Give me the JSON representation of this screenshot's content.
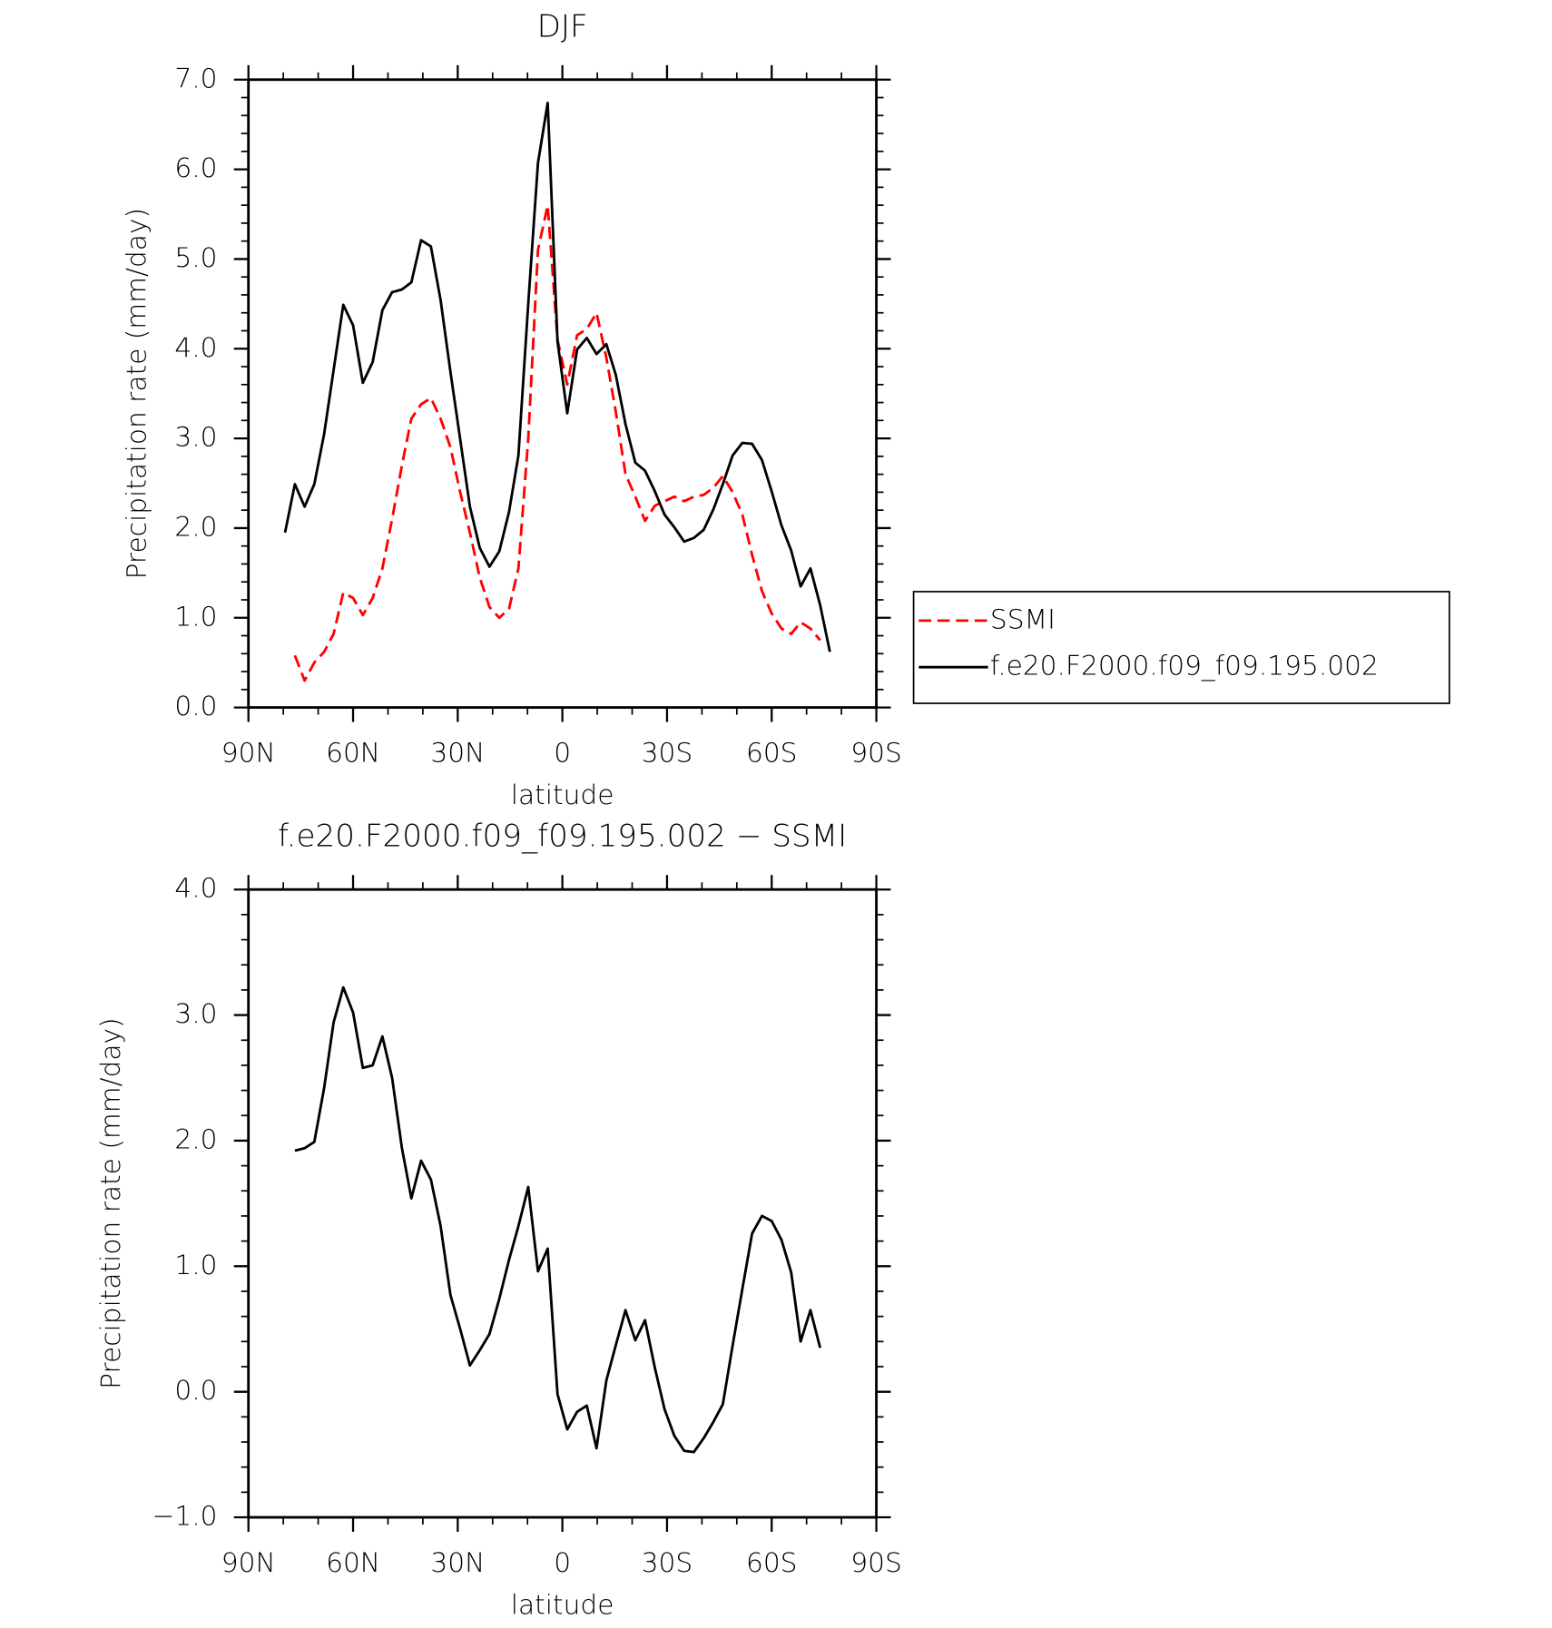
{
  "chart_data": [
    {
      "type": "line",
      "title": "DJF",
      "xlabel": "latitude",
      "ylabel": "Precipitation rate (mm/day)",
      "x": [
        79.5,
        76.7,
        73.9,
        71.1,
        68.3,
        65.6,
        62.8,
        60.0,
        57.2,
        54.4,
        51.6,
        48.8,
        46.0,
        43.3,
        40.5,
        37.7,
        34.9,
        32.1,
        29.3,
        26.5,
        23.7,
        20.9,
        18.1,
        15.3,
        12.6,
        9.8,
        7.0,
        4.2,
        1.4,
        -1.4,
        -4.2,
        -7.0,
        -9.8,
        -12.6,
        -15.3,
        -18.1,
        -20.9,
        -23.7,
        -26.5,
        -29.3,
        -32.1,
        -34.9,
        -37.7,
        -40.5,
        -43.3,
        -46.0,
        -48.8,
        -51.6,
        -54.4,
        -57.2,
        -60.0,
        -62.8,
        -65.6,
        -68.3,
        -71.1,
        -73.9,
        -76.7,
        -79.5
      ],
      "series": [
        {
          "name": "SSMI",
          "color": "#ff0000",
          "dashed": true,
          "values": [
            null,
            0.58,
            0.3,
            0.5,
            0.62,
            0.82,
            1.28,
            1.22,
            1.03,
            1.22,
            1.55,
            2.1,
            2.7,
            3.22,
            3.38,
            3.45,
            3.22,
            2.9,
            2.4,
            1.95,
            1.45,
            1.12,
            1.0,
            1.1,
            1.55,
            3.0,
            5.1,
            5.6,
            4.1,
            3.6,
            4.15,
            4.22,
            4.4,
            3.9,
            3.3,
            2.6,
            2.35,
            2.08,
            2.25,
            2.3,
            2.35,
            2.3,
            2.35,
            2.37,
            2.45,
            2.58,
            2.4,
            2.15,
            1.7,
            1.3,
            1.05,
            0.88,
            0.82,
            0.95,
            0.88,
            0.75,
            null,
            null
          ]
        },
        {
          "name": "f.e20.F2000.f09_f09.195.002",
          "color": "#000000",
          "dashed": false,
          "values": [
            1.95,
            2.49,
            2.24,
            2.49,
            3.05,
            3.76,
            4.49,
            4.26,
            3.62,
            3.85,
            4.43,
            4.63,
            4.66,
            4.74,
            5.21,
            5.14,
            4.54,
            3.74,
            2.99,
            2.24,
            1.78,
            1.57,
            1.74,
            2.18,
            2.81,
            4.5,
            6.07,
            6.74,
            4.08,
            3.28,
            3.99,
            4.12,
            3.94,
            4.05,
            3.71,
            3.16,
            2.73,
            2.64,
            2.41,
            2.15,
            2.01,
            1.85,
            1.89,
            1.98,
            2.21,
            2.49,
            2.81,
            2.95,
            2.94,
            2.76,
            2.41,
            2.03,
            1.75,
            1.35,
            1.55,
            1.14,
            0.62,
            null
          ]
        }
      ],
      "xlim": [
        90,
        -90
      ],
      "xticks": [
        {
          "value": 90,
          "label": "90N"
        },
        {
          "value": 60,
          "label": "60N"
        },
        {
          "value": 30,
          "label": "30N"
        },
        0,
        {
          "value": -30,
          "label": "30S"
        },
        {
          "value": -60,
          "label": "60S"
        },
        {
          "value": -90,
          "label": "90S"
        }
      ],
      "ylim": [
        0,
        7
      ],
      "yticks": [
        {
          "value": 0,
          "label": "0.0"
        },
        {
          "value": 1,
          "label": "1.0"
        },
        {
          "value": 2,
          "label": "2.0"
        },
        {
          "value": 3,
          "label": "3.0"
        },
        {
          "value": 4,
          "label": "4.0"
        },
        {
          "value": 5,
          "label": "5.0"
        },
        {
          "value": 6,
          "label": "6.0"
        },
        {
          "value": 7,
          "label": "7.0"
        }
      ],
      "legend": "right"
    },
    {
      "type": "line",
      "title": "f.e20.F2000.f09_f09.195.002 − SSMI",
      "xlabel": "latitude",
      "ylabel": "Precipitation rate (mm/day)",
      "x": [
        79.5,
        76.7,
        73.9,
        71.1,
        68.3,
        65.6,
        62.8,
        60.0,
        57.2,
        54.4,
        51.6,
        48.8,
        46.0,
        43.3,
        40.5,
        37.7,
        34.9,
        32.1,
        29.3,
        26.5,
        23.7,
        20.9,
        18.1,
        15.3,
        12.6,
        9.8,
        7.0,
        4.2,
        1.4,
        -1.4,
        -4.2,
        -7.0,
        -9.8,
        -12.6,
        -15.3,
        -18.1,
        -20.9,
        -23.7,
        -26.5,
        -29.3,
        -32.1,
        -34.9,
        -37.7,
        -40.5,
        -43.3,
        -46.0,
        -48.8,
        -51.6,
        -54.4,
        -57.2,
        -60.0,
        -62.8,
        -65.6,
        -68.3,
        -71.1,
        -73.9,
        -76.7,
        -79.5
      ],
      "color": "#000000",
      "values": [
        null,
        1.92,
        1.94,
        1.99,
        2.42,
        2.94,
        3.22,
        3.02,
        2.58,
        2.6,
        2.83,
        2.5,
        1.94,
        1.54,
        1.84,
        1.69,
        1.32,
        0.77,
        0.5,
        0.21,
        0.33,
        0.46,
        0.74,
        1.05,
        1.32,
        1.63,
        0.96,
        1.14,
        -0.02,
        -0.3,
        -0.16,
        -0.11,
        -0.45,
        0.09,
        0.37,
        0.65,
        0.41,
        0.57,
        0.19,
        -0.14,
        -0.35,
        -0.47,
        -0.48,
        -0.37,
        -0.24,
        -0.1,
        0.37,
        0.82,
        1.26,
        1.4,
        1.36,
        1.21,
        0.95,
        0.4,
        0.65,
        0.35,
        null,
        null
      ],
      "xlim": [
        90,
        -90
      ],
      "xticks": [
        {
          "value": 90,
          "label": "90N"
        },
        {
          "value": 60,
          "label": "60N"
        },
        {
          "value": 30,
          "label": "30N"
        },
        0,
        {
          "value": -30,
          "label": "30S"
        },
        {
          "value": -60,
          "label": "60S"
        },
        {
          "value": -90,
          "label": "90S"
        }
      ],
      "ylim": [
        -1,
        4
      ],
      "yticks": [
        {
          "value": -1,
          "label": "−1.0"
        },
        {
          "value": 0,
          "label": "0.0"
        },
        {
          "value": 1,
          "label": "1.0"
        },
        {
          "value": 2,
          "label": "2.0"
        },
        {
          "value": 3,
          "label": "3.0"
        },
        {
          "value": 4,
          "label": "4.0"
        }
      ]
    }
  ]
}
